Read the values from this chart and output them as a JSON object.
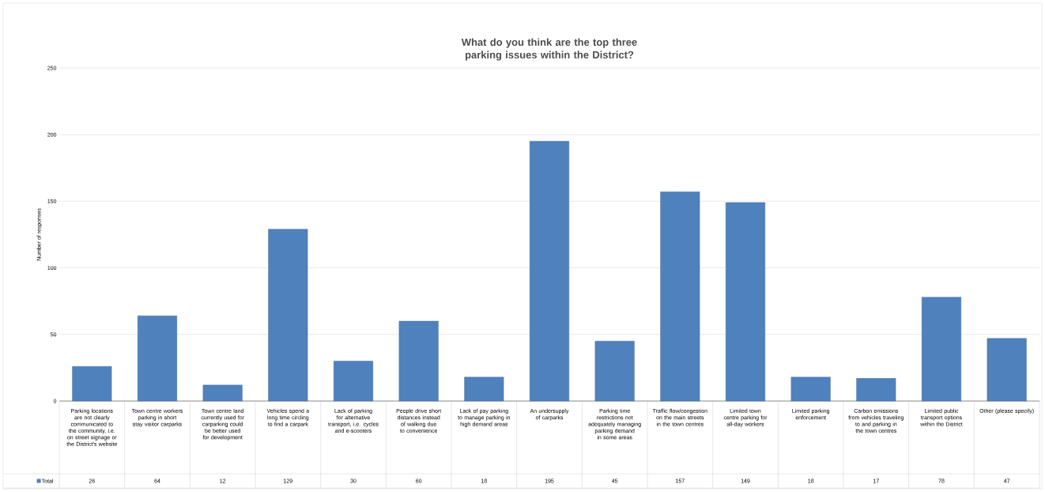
{
  "chart_data": {
    "type": "bar",
    "title": "What do you think are the top three parking issues within the District?",
    "ylabel": "Number of responses",
    "categories": [
      "Parking locations are not clearly communicated to the community, i.e. on street signage or the District's website",
      "Town centre workers parking in short stay visitor carparks",
      "Town centre land currently used for carparking could be better used for development",
      "Vehicles spend a long time circling to find a carpark",
      "Lack of parking for alternative transport, i.e. cycles and e-scooters",
      "People drive short distances instead of walking due to convenience",
      "Lack of pay parking to manage parking in high demand areas",
      "An undersupply of carparks",
      "Parking time restrictions not adequately managing parking demand in some areas",
      "Traffic flow/congestion on the main streets in the town centres",
      "Limited town centre parking for all-day workers",
      "Limited parking enforcement",
      "Carbon emissions from vehicles traveling to and parking in the town centres",
      "Limited public transport options within the District",
      "Other (please specify)"
    ],
    "series": [
      {
        "name": "Total",
        "color": "#4f81bd",
        "values": [
          26,
          64,
          12,
          129,
          30,
          60,
          18,
          195,
          45,
          157,
          149,
          18,
          17,
          78,
          47
        ]
      }
    ],
    "ylim": [
      0,
      250
    ],
    "yticks": [
      0,
      50,
      100,
      150,
      200,
      250
    ],
    "grid": "y",
    "data_labels": true
  }
}
